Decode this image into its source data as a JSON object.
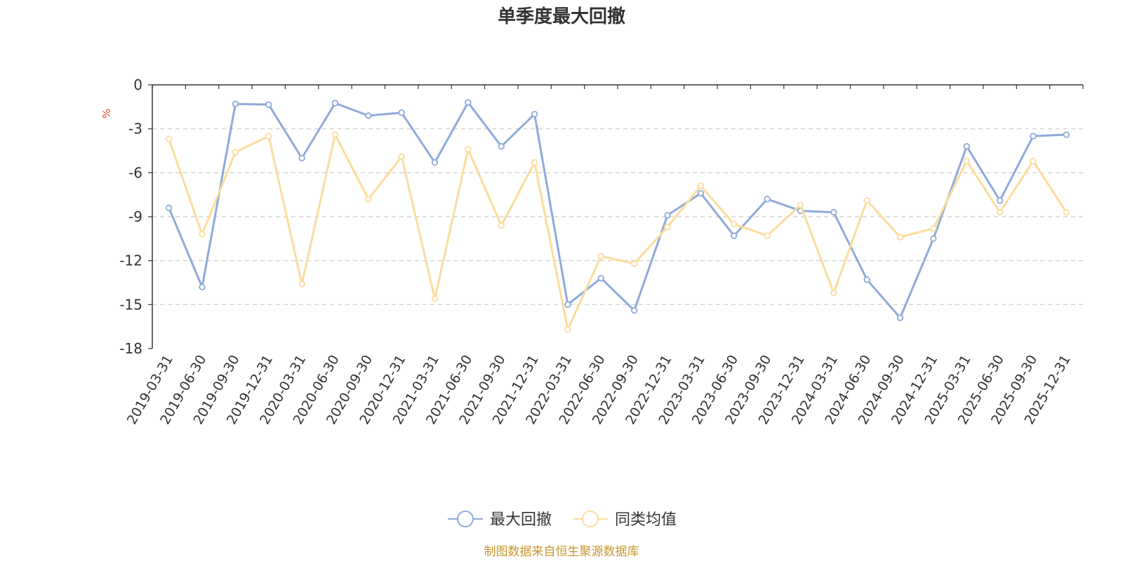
{
  "chart_data": {
    "type": "line",
    "title": "单季度最大回撤",
    "ylabel": "%",
    "ylim": [
      -18,
      0
    ],
    "yticks": [
      0,
      -3,
      -6,
      -9,
      -12,
      -15,
      -18
    ],
    "grid": true,
    "legend_position": "bottom-center",
    "categories": [
      "2019-03-31",
      "2019-06-30",
      "2019-09-30",
      "2019-12-31",
      "2020-03-31",
      "2020-06-30",
      "2020-09-30",
      "2020-12-31",
      "2021-03-31",
      "2021-06-30",
      "2021-09-30",
      "2021-12-31",
      "2022-03-31",
      "2022-06-30",
      "2022-09-30",
      "2022-12-31",
      "2023-03-31",
      "2023-06-30",
      "2023-09-30",
      "2023-12-31",
      "2024-03-31",
      "2024-06-30",
      "2024-09-30",
      "2024-12-31",
      "2025-03-31",
      "2025-06-30",
      "2025-09-30",
      "2025-12-31"
    ],
    "series": [
      {
        "name": "最大回撤",
        "color": "#8eaadb",
        "values": [
          -8.4,
          -13.8,
          -1.3,
          -1.35,
          -5.0,
          -1.25,
          -2.1,
          -1.9,
          -5.3,
          -1.2,
          -4.2,
          -2.0,
          -15.0,
          -13.2,
          -15.4,
          -8.9,
          -7.4,
          -10.3,
          -7.8,
          -8.6,
          -8.7,
          -13.3,
          -15.9,
          -10.5,
          -4.2,
          -7.9,
          -3.5,
          -3.4
        ]
      },
      {
        "name": "同类均值",
        "color": "#fcdc9c",
        "values": [
          -3.7,
          -10.2,
          -4.6,
          -3.5,
          -13.6,
          -3.4,
          -7.8,
          -4.9,
          -14.6,
          -4.4,
          -9.6,
          -5.3,
          -16.7,
          -11.7,
          -12.2,
          -9.7,
          -6.9,
          -9.5,
          -10.3,
          -8.2,
          -14.2,
          -7.9,
          -10.4,
          -9.8,
          -5.2,
          -8.7,
          -5.2,
          -8.7
        ]
      }
    ]
  },
  "axis_color": "#333333",
  "grid_color": "#cccccc",
  "unit_color": "#e8432e",
  "source_color": "#c9962e",
  "source_text": "制图数据来自恒生聚源数据库"
}
